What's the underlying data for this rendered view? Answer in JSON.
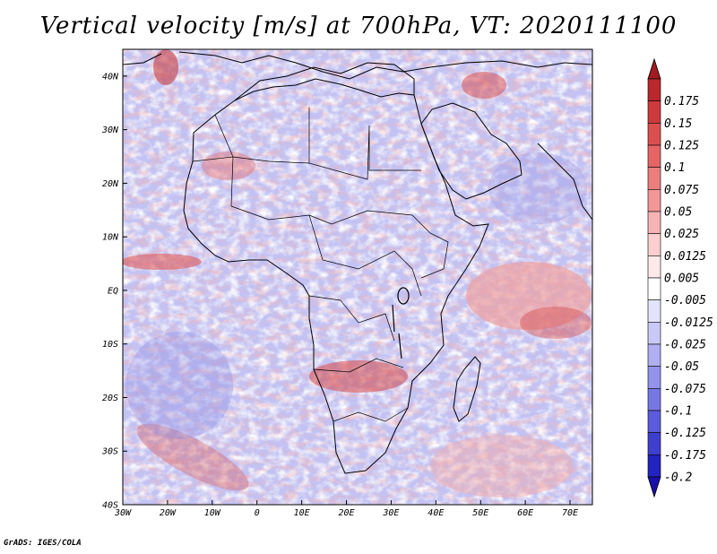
{
  "title": "Vertical velocity [m/s] at 700hPa, VT: 2020111100",
  "credit": "GrADS: IGES/COLA",
  "map": {
    "region": "Africa",
    "projection": "latlon",
    "lon_range": [
      -30,
      75
    ],
    "lat_range": [
      -40,
      45
    ],
    "lat_ticks": [
      {
        "value": 40,
        "label": "40N"
      },
      {
        "value": 30,
        "label": "30N"
      },
      {
        "value": 20,
        "label": "20N"
      },
      {
        "value": 10,
        "label": "10N"
      },
      {
        "value": 0,
        "label": "EQ"
      },
      {
        "value": -10,
        "label": "10S"
      },
      {
        "value": -20,
        "label": "20S"
      },
      {
        "value": -30,
        "label": "30S"
      },
      {
        "value": -40,
        "label": "40S"
      }
    ],
    "lon_ticks": [
      {
        "value": -30,
        "label": "30W"
      },
      {
        "value": -20,
        "label": "20W"
      },
      {
        "value": -10,
        "label": "10W"
      },
      {
        "value": 0,
        "label": "0"
      },
      {
        "value": 10,
        "label": "10E"
      },
      {
        "value": 20,
        "label": "20E"
      },
      {
        "value": 30,
        "label": "30E"
      },
      {
        "value": 40,
        "label": "40E"
      },
      {
        "value": 50,
        "label": "50E"
      },
      {
        "value": 60,
        "label": "60E"
      },
      {
        "value": 70,
        "label": "70E"
      }
    ]
  },
  "colorbar": {
    "levels": [
      {
        "label": "0.175",
        "color": "#b8282c"
      },
      {
        "label": "0.15",
        "color": "#cd3a3c"
      },
      {
        "label": "0.125",
        "color": "#dc4f4f"
      },
      {
        "label": "0.1",
        "color": "#e56565"
      },
      {
        "label": "0.075",
        "color": "#ec7e7e"
      },
      {
        "label": "0.05",
        "color": "#f29898"
      },
      {
        "label": "0.025",
        "color": "#f7b3b3"
      },
      {
        "label": "0.0125",
        "color": "#fbcfcf"
      },
      {
        "label": "0.005",
        "color": "#fde9e9"
      },
      {
        "label": "-0.005",
        "color": "#ffffff"
      },
      {
        "label": "-0.0125",
        "color": "#e3e3fb"
      },
      {
        "label": "-0.025",
        "color": "#c9c9f7"
      },
      {
        "label": "-0.05",
        "color": "#afaff2"
      },
      {
        "label": "-0.075",
        "color": "#9393ec"
      },
      {
        "label": "-0.1",
        "color": "#7777e4"
      },
      {
        "label": "-0.125",
        "color": "#5b5bdb"
      },
      {
        "label": "-0.175",
        "color": "#3f3fcf"
      },
      {
        "label": "-0.2",
        "color": "#2323bf"
      }
    ],
    "upper_triangle_color": "#a01c22",
    "lower_triangle_color": "#1a10a8"
  },
  "colors": {
    "background_field": "#c2c2f3",
    "positive_area": "#f3b3b3",
    "strong_positive": "#d84646",
    "negative_area": "#9a9ae9",
    "coastline": "#000000"
  }
}
